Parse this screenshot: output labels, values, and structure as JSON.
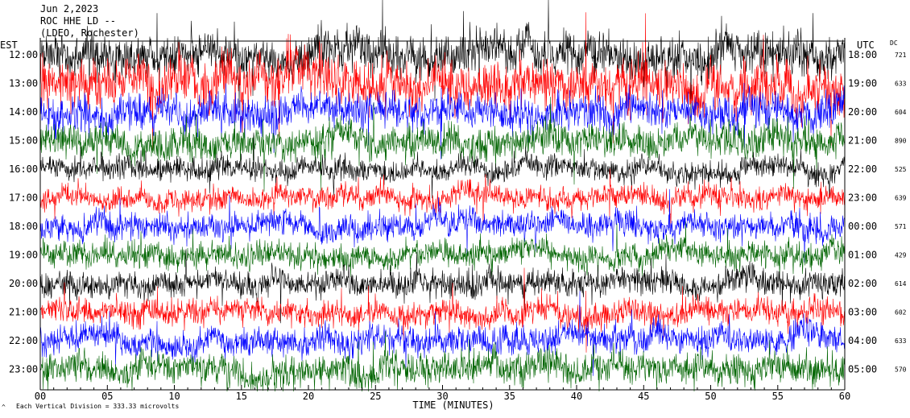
{
  "header": {
    "date": "Jun 2,2023",
    "station": "ROC HHE LD --",
    "location": "(LDEO, Rochester)"
  },
  "axis_labels": {
    "left_tz": "EST",
    "right_tz": "UTC",
    "dc": "DC",
    "xlabel": "TIME (MINUTES)",
    "footer": "Each Vertical Division =  333.33 microvolts",
    "footer_mark": "^"
  },
  "colors": {
    "trace_cycle": [
      "#000000",
      "#ff0000",
      "#0000ff",
      "#006400"
    ],
    "axis": "#000000",
    "background": "#ffffff"
  },
  "chart_data": {
    "type": "line",
    "title": "",
    "xlabel": "TIME (MINUTES)",
    "ylabel": "",
    "xlim": [
      0,
      60
    ],
    "x_ticks": [
      "00",
      "05",
      "10",
      "15",
      "20",
      "25",
      "30",
      "35",
      "40",
      "45",
      "50",
      "55",
      "60"
    ],
    "grid": false,
    "legend": "none",
    "rows": [
      {
        "est": "12:00",
        "utc": "18:00",
        "dc": "721",
        "amplitude": 1.6
      },
      {
        "est": "13:00",
        "utc": "19:00",
        "dc": "633",
        "amplitude": 1.9
      },
      {
        "est": "14:00",
        "utc": "20:00",
        "dc": "604",
        "amplitude": 1.4
      },
      {
        "est": "15:00",
        "utc": "21:00",
        "dc": "890",
        "amplitude": 1.3
      },
      {
        "est": "16:00",
        "utc": "22:00",
        "dc": "525",
        "amplitude": 0.9
      },
      {
        "est": "17:00",
        "utc": "23:00",
        "dc": "639",
        "amplitude": 0.9
      },
      {
        "est": "18:00",
        "utc": "00:00",
        "dc": "571",
        "amplitude": 1.0
      },
      {
        "est": "19:00",
        "utc": "01:00",
        "dc": "429",
        "amplitude": 1.0
      },
      {
        "est": "20:00",
        "utc": "02:00",
        "dc": "614",
        "amplitude": 1.0
      },
      {
        "est": "21:00",
        "utc": "03:00",
        "dc": "602",
        "amplitude": 1.0
      },
      {
        "est": "22:00",
        "utc": "04:00",
        "dc": "633",
        "amplitude": 1.1
      },
      {
        "est": "23:00",
        "utc": "05:00",
        "dc": "570",
        "amplitude": 1.2
      }
    ]
  }
}
